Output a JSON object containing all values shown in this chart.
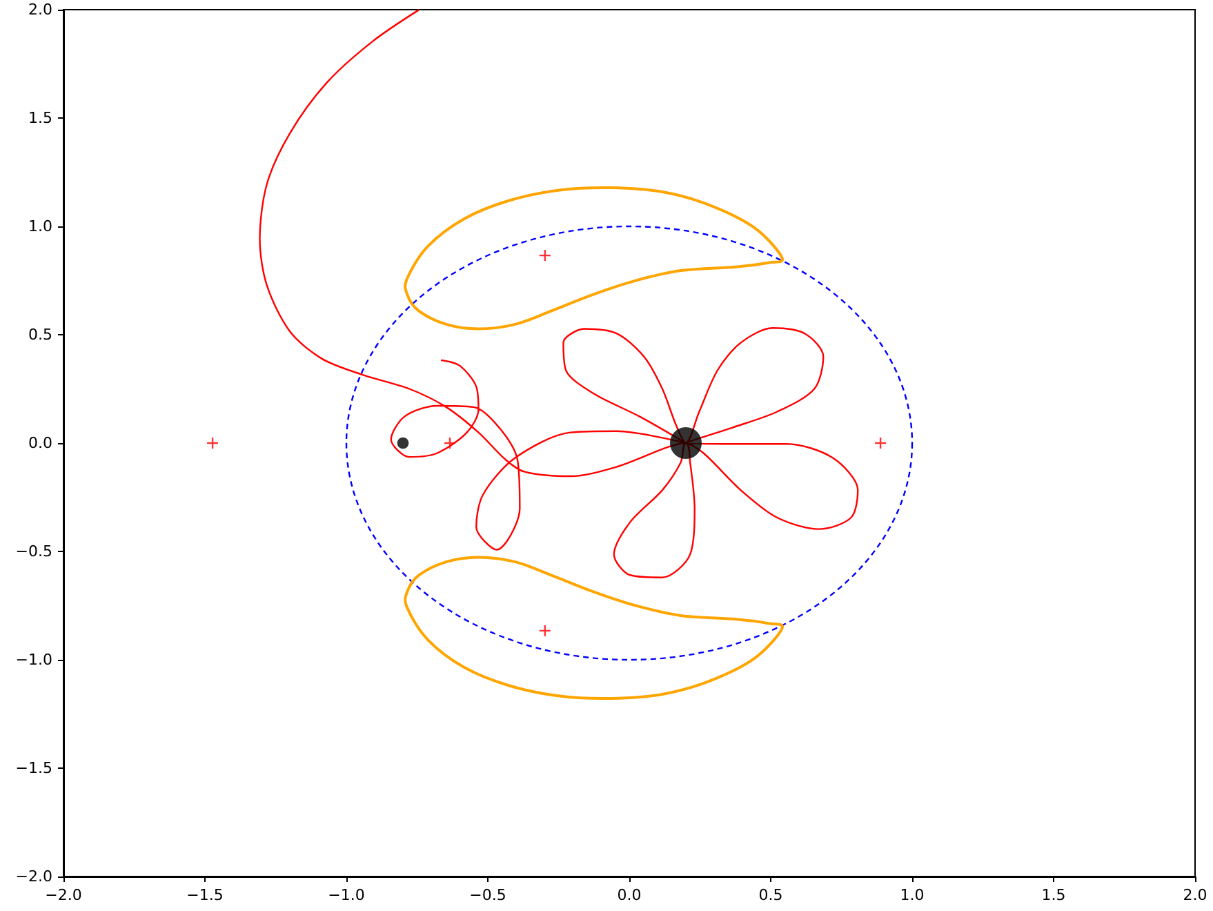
{
  "chart_data": {
    "type": "line",
    "xlim": [
      -2,
      2
    ],
    "ylim": [
      -2,
      2
    ],
    "xticks": [
      {
        "value": -2,
        "label": "−2.0"
      },
      {
        "value": -1.5,
        "label": "−1.5"
      },
      {
        "value": -1,
        "label": "−1.0"
      },
      {
        "value": -0.5,
        "label": "−0.5"
      },
      {
        "value": 0,
        "label": "0.0"
      },
      {
        "value": 0.5,
        "label": "0.5"
      },
      {
        "value": 1,
        "label": "1.0"
      },
      {
        "value": 1.5,
        "label": "1.5"
      },
      {
        "value": 2,
        "label": "2.0"
      }
    ],
    "yticks": [
      {
        "value": -2,
        "label": "−2.0"
      },
      {
        "value": -1.5,
        "label": "−1.5"
      },
      {
        "value": -1,
        "label": "−1.0"
      },
      {
        "value": -0.5,
        "label": "−0.5"
      },
      {
        "value": 0,
        "label": "0.0"
      },
      {
        "value": 0.5,
        "label": "0.5"
      },
      {
        "value": 1,
        "label": "1.0"
      },
      {
        "value": 1.5,
        "label": "1.5"
      },
      {
        "value": 2,
        "label": "2.0"
      }
    ],
    "grid": false,
    "series": [
      {
        "color": "#ff0000",
        "line_style": "solid",
        "marker": "none",
        "x": [
          -0.663,
          -0.599,
          -0.541,
          -0.533,
          -0.574,
          -0.68,
          -0.777,
          -0.842,
          -0.794,
          -0.68,
          -0.55,
          -0.452,
          -0.395,
          -0.387,
          -0.468,
          -0.541,
          -0.517,
          -0.403,
          -0.208,
          -0.045,
          0.2,
          0.036,
          -0.127,
          -0.224,
          -0.233,
          -0.159,
          -0.045,
          0.052,
          0.117,
          0.166,
          0.2,
          0.247,
          0.312,
          0.394,
          0.507,
          0.621,
          0.686,
          0.654,
          0.523,
          0.361,
          0.2,
          0.361,
          0.556,
          0.719,
          0.808,
          0.784,
          0.67,
          0.523,
          0.394,
          0.263,
          0.2,
          0.182,
          0.117,
          0.003,
          -0.054,
          0.003,
          0.117,
          0.215,
          0.231,
          0.215,
          0.2,
          -0.045,
          -0.208,
          -0.371,
          -0.436,
          -0.533,
          -0.647,
          -0.777,
          -0.94,
          -1.086,
          -1.2,
          -1.281,
          -1.306,
          -1.281,
          -1.2,
          -1.07,
          -0.907,
          -0.745
        ],
        "values": [
          0.382,
          0.357,
          0.261,
          0.155,
          0.049,
          -0.047,
          -0.064,
          0.017,
          0.123,
          0.172,
          0.166,
          0.059,
          -0.078,
          -0.301,
          -0.492,
          -0.387,
          -0.238,
          -0.068,
          0.049,
          0.055,
          0,
          0.123,
          0.229,
          0.336,
          0.463,
          0.527,
          0.506,
          0.399,
          0.25,
          0.081,
          0,
          0.144,
          0.336,
          0.463,
          0.531,
          0.505,
          0.399,
          0.25,
          0.145,
          0.07,
          0,
          -0.004,
          -0.004,
          -0.068,
          -0.217,
          -0.344,
          -0.397,
          -0.344,
          -0.217,
          -0.047,
          0,
          -0.089,
          -0.217,
          -0.365,
          -0.514,
          -0.609,
          -0.62,
          -0.514,
          -0.301,
          -0.089,
          0,
          -0.11,
          -0.153,
          -0.132,
          -0.078,
          0.049,
          0.166,
          0.25,
          0.314,
          0.389,
          0.516,
          0.728,
          0.94,
          1.195,
          1.429,
          1.662,
          1.854,
          1.998
        ]
      },
      {
        "type": "scatter",
        "color": "#ff0000",
        "marker": "cross",
        "x": [
          -1.473,
          -0.634,
          0.888,
          -0.298,
          -0.298
        ],
        "values": [
          0,
          0,
          0,
          0.866,
          -0.866
        ]
      },
      {
        "type": "bubble",
        "color": "#000000",
        "marker": "circle",
        "x": [
          -0.8,
          0.2
        ],
        "values": [
          0,
          0
        ],
        "sizes": [
          0.13,
          1
        ]
      }
    ]
  }
}
